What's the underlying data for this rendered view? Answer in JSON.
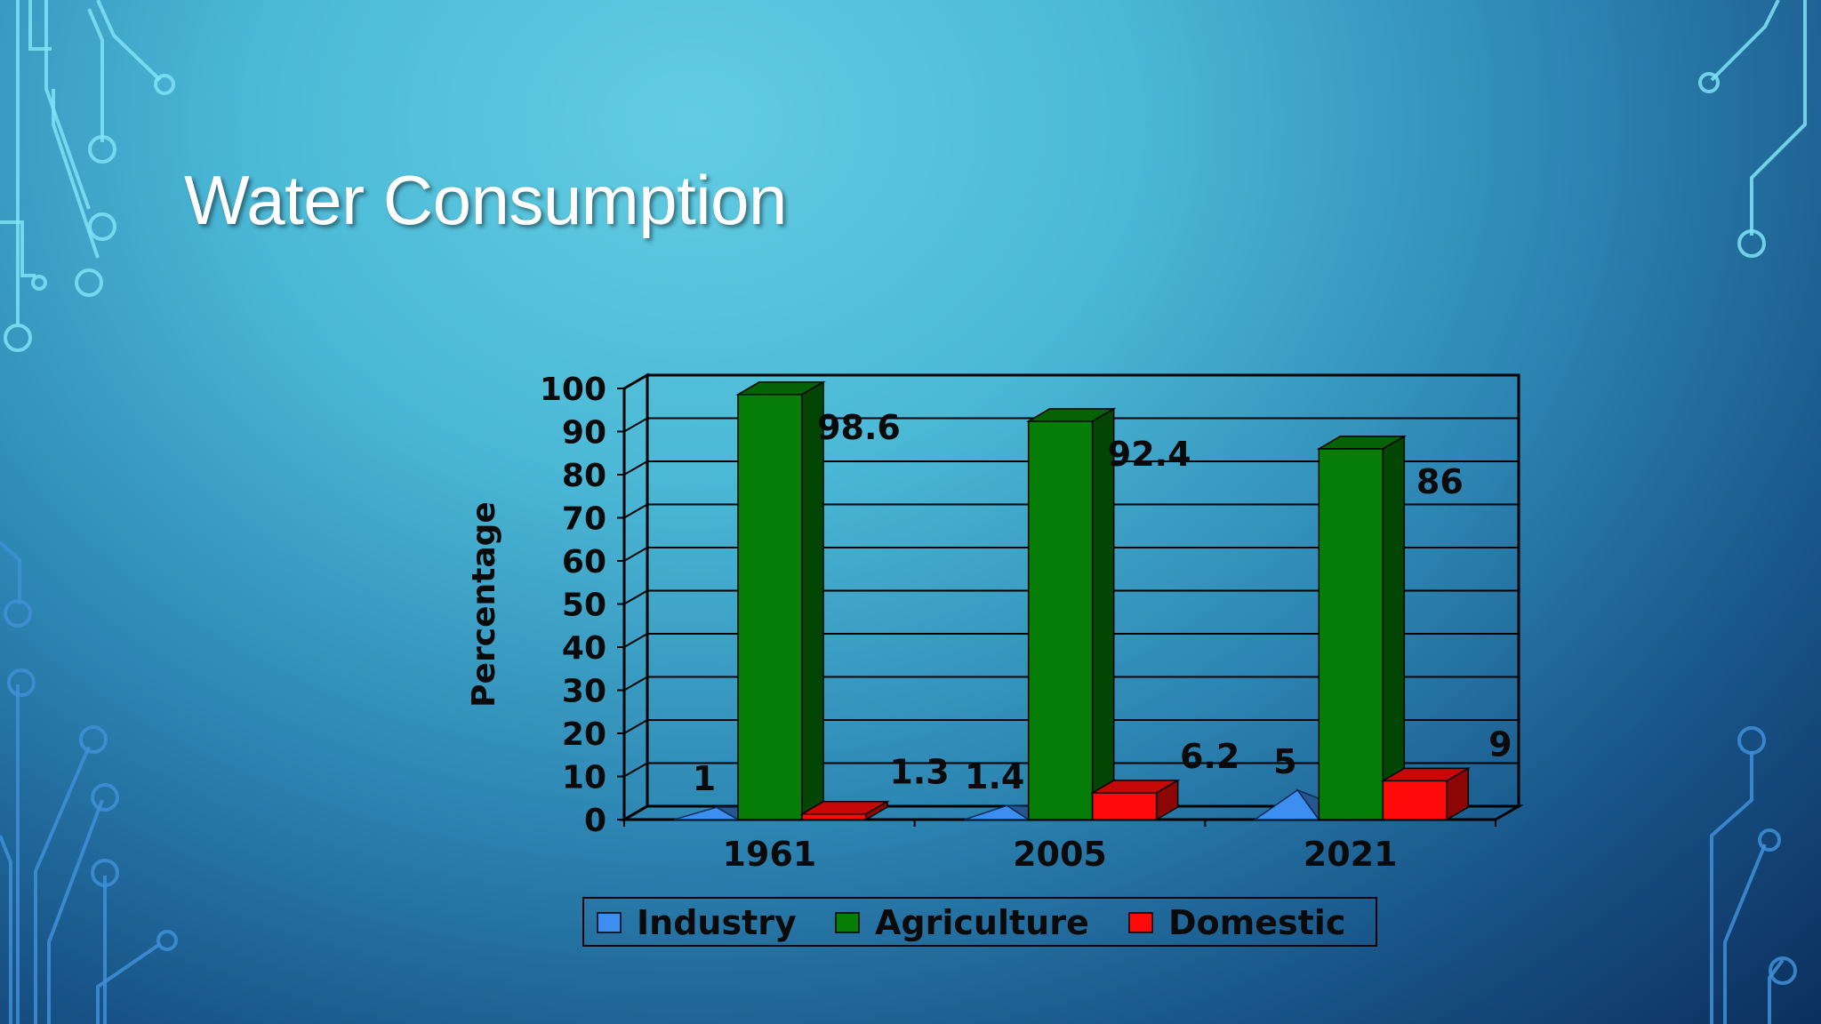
{
  "slide": {
    "title": "Water Consumption"
  },
  "colors": {
    "industry": "#3c8ff0",
    "agriculture": "#067d06",
    "domestic": "#ff0a0a",
    "background_light": "#62cde2",
    "background_dark": "#0c2f5c",
    "circuit_light": "#7fe3f3",
    "circuit_dark": "#3f8fd8"
  },
  "chart_data": {
    "type": "bar",
    "style": "3d-clustered",
    "title": "",
    "xlabel": "",
    "ylabel": "Percentage",
    "ylim": [
      0,
      100
    ],
    "yticks": [
      "0",
      "10",
      "20",
      "30",
      "40",
      "50",
      "60",
      "70",
      "80",
      "90",
      "100"
    ],
    "categories": [
      "1961",
      "2005",
      "2021"
    ],
    "series": [
      {
        "name": "Industry",
        "values": [
          1,
          1.4,
          5
        ],
        "labels": [
          "1",
          "1.4",
          "5"
        ],
        "shape": "pyramid"
      },
      {
        "name": "Agriculture",
        "values": [
          98.6,
          92.4,
          86
        ],
        "labels": [
          "98.6",
          "92.4",
          "86"
        ],
        "shape": "box"
      },
      {
        "name": "Domestic",
        "values": [
          1.3,
          6.2,
          9
        ],
        "labels": [
          "1.3",
          "6.2",
          "9"
        ],
        "shape": "box"
      }
    ],
    "grid": true,
    "legend_position": "bottom"
  }
}
